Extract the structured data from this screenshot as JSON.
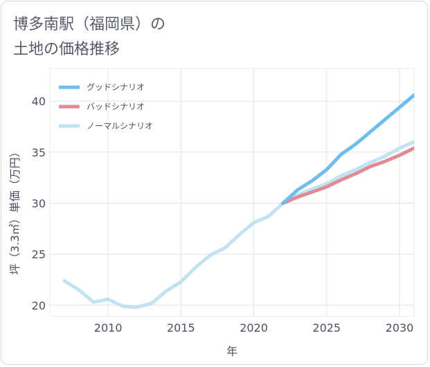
{
  "chart_data": {
    "type": "line",
    "title_line1": "博多南駅（福岡県）の",
    "title_line2": "土地の価格推移",
    "xlabel": "年",
    "ylabel": "坪（3.3㎡）単価（万円）",
    "xlim": [
      2006,
      2031
    ],
    "ylim": [
      18.9,
      43.2
    ],
    "xticks": [
      2010,
      2015,
      2020,
      2025,
      2030
    ],
    "yticks": [
      20,
      25,
      30,
      35,
      40
    ],
    "legend_position": "top-left",
    "series": [
      {
        "name": "グッドシナリオ",
        "color": "#6fbcee",
        "x": [
          2022,
          2023,
          2024,
          2025,
          2026,
          2027,
          2028,
          2029,
          2030,
          2031
        ],
        "values": [
          30.0,
          31.3,
          32.2,
          33.3,
          34.8,
          35.8,
          37.0,
          38.2,
          39.4,
          40.6
        ]
      },
      {
        "name": "バッドシナリオ",
        "color": "#e08a92",
        "x": [
          2022,
          2023,
          2024,
          2025,
          2026,
          2027,
          2028,
          2029,
          2030,
          2031
        ],
        "values": [
          30.0,
          30.6,
          31.1,
          31.6,
          32.3,
          32.9,
          33.6,
          34.1,
          34.7,
          35.4
        ]
      },
      {
        "name": "ノーマルシナリオ",
        "color": "#c2e2f2",
        "x": [
          2007,
          2008,
          2009,
          2010,
          2011,
          2012,
          2013,
          2014,
          2015,
          2016,
          2017,
          2018,
          2019,
          2020,
          2021,
          2022,
          2023,
          2024,
          2025,
          2026,
          2027,
          2028,
          2029,
          2030,
          2031
        ],
        "values": [
          22.4,
          21.5,
          20.3,
          20.6,
          19.9,
          19.8,
          20.2,
          21.4,
          22.3,
          23.7,
          24.9,
          25.6,
          26.9,
          28.1,
          28.7,
          30.0,
          30.8,
          31.4,
          31.9,
          32.7,
          33.3,
          34.0,
          34.6,
          35.4,
          36.0
        ]
      }
    ]
  }
}
